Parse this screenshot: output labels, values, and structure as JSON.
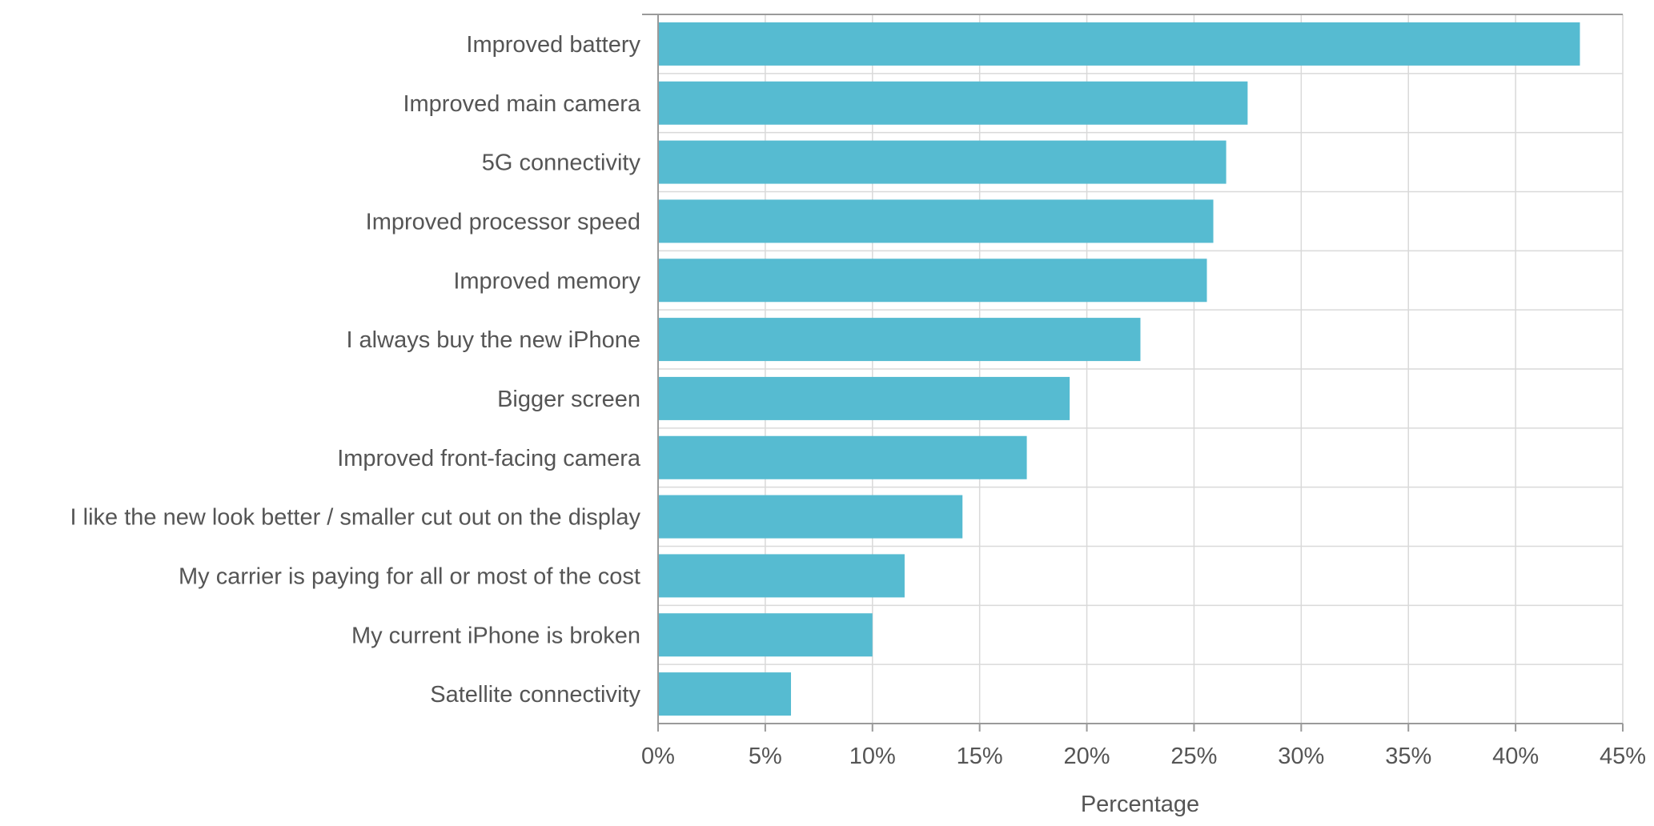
{
  "chart_data": {
    "type": "bar",
    "orientation": "horizontal",
    "categories": [
      "Improved battery",
      "Improved main camera",
      "5G connectivity",
      "Improved processor speed",
      "Improved memory",
      "I always buy the new iPhone",
      "Bigger screen",
      "Improved front-facing camera",
      "I like the new look better / smaller cut out on the display",
      "My carrier is paying for all or most of the cost",
      "My current iPhone is broken",
      "Satellite connectivity"
    ],
    "values": [
      43.0,
      27.5,
      26.5,
      25.9,
      25.6,
      22.5,
      19.2,
      17.2,
      14.2,
      11.5,
      10.0,
      6.2
    ],
    "xlabel": "Percentage",
    "ylabel": "",
    "xlim": [
      0,
      45
    ],
    "xticks": [
      0,
      5,
      10,
      15,
      20,
      25,
      30,
      35,
      40,
      45
    ],
    "tick_labels": [
      "0%",
      "5%",
      "10%",
      "15%",
      "20%",
      "25%",
      "30%",
      "35%",
      "40%",
      "45%"
    ],
    "grid": true,
    "legend": "none",
    "bar_color": "#56bbd1"
  }
}
